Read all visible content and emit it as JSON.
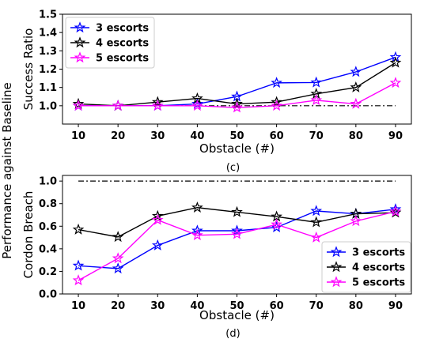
{
  "supylabel": "Performance against Baseline",
  "colors": {
    "3 escorts": "#0000ff",
    "4 escorts": "#000000",
    "5 escorts": "#ff00ff",
    "baseline": "#000000"
  },
  "chart_data": [
    {
      "type": "line",
      "caption": "(c)",
      "xlabel": "Obstacle (#)",
      "ylabel": "Success Ratio",
      "x": [
        10,
        20,
        30,
        40,
        50,
        60,
        70,
        80,
        90
      ],
      "xlim": [
        6,
        94
      ],
      "ylim": [
        0.9,
        1.5
      ],
      "yticks": [
        1.0,
        1.1,
        1.2,
        1.3,
        1.4,
        1.5
      ],
      "ytick_labels": [
        "1.0",
        "1.1",
        "1.2",
        "1.3",
        "1.4",
        "1.5"
      ],
      "xtick_labels": [
        "10",
        "20",
        "30",
        "40",
        "50",
        "60",
        "70",
        "80",
        "90"
      ],
      "baseline": 1.0,
      "legend_loc": "upper-left",
      "series": [
        {
          "name": "3 escorts",
          "values": [
            1.0,
            1.0,
            1.0,
            1.01,
            1.05,
            1.125,
            1.127,
            1.185,
            1.265
          ]
        },
        {
          "name": "4 escorts",
          "values": [
            1.01,
            1.0,
            1.02,
            1.04,
            1.01,
            1.02,
            1.065,
            1.1,
            1.235
          ]
        },
        {
          "name": "5 escorts",
          "values": [
            1.0,
            1.0,
            1.0,
            1.0,
            0.99,
            1.0,
            1.03,
            1.01,
            1.125
          ]
        }
      ]
    },
    {
      "type": "line",
      "caption": "(d)",
      "xlabel": "Obstacle (#)",
      "ylabel": "Cordon Breach",
      "x": [
        10,
        20,
        30,
        40,
        50,
        60,
        70,
        80,
        90
      ],
      "xlim": [
        6,
        94
      ],
      "ylim": [
        0.0,
        1.05
      ],
      "yticks": [
        0.0,
        0.2,
        0.4,
        0.6,
        0.8,
        1.0
      ],
      "ytick_labels": [
        "0.0",
        "0.2",
        "0.4",
        "0.6",
        "0.8",
        "1.0"
      ],
      "xtick_labels": [
        "10",
        "20",
        "30",
        "40",
        "50",
        "60",
        "70",
        "80",
        "90"
      ],
      "baseline": 1.0,
      "legend_loc": "lower-right",
      "series": [
        {
          "name": "3 escorts",
          "values": [
            0.25,
            0.225,
            0.43,
            0.56,
            0.56,
            0.59,
            0.735,
            0.71,
            0.75
          ]
        },
        {
          "name": "4 escorts",
          "values": [
            0.57,
            0.505,
            0.69,
            0.765,
            0.725,
            0.685,
            0.635,
            0.71,
            0.72
          ]
        },
        {
          "name": "5 escorts",
          "values": [
            0.12,
            0.315,
            0.655,
            0.52,
            0.53,
            0.615,
            0.5,
            0.645,
            0.73
          ]
        }
      ]
    }
  ]
}
